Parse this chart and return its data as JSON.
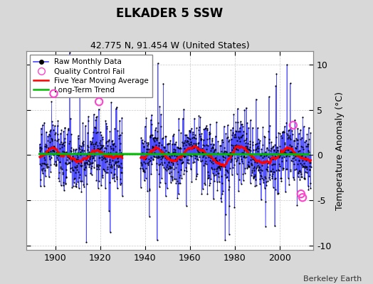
{
  "title": "ELKADER 5 SSW",
  "subtitle": "42.775 N, 91.454 W (United States)",
  "ylabel": "Temperature Anomaly (°C)",
  "attribution": "Berkeley Earth",
  "xlim": [
    1887,
    2015
  ],
  "ylim": [
    -10.5,
    11.5
  ],
  "yticks": [
    -10,
    -5,
    0,
    5,
    10
  ],
  "xticks": [
    1900,
    1920,
    1940,
    1960,
    1980,
    2000
  ],
  "bg_color": "#d8d8d8",
  "plot_bg_color": "#ffffff",
  "raw_line_color": "#4444ff",
  "raw_dot_color": "#000000",
  "ma_color": "#ff0000",
  "trend_color": "#00bb00",
  "qc_color": "#ff44cc",
  "period1": [
    1893,
    1929
  ],
  "period2": [
    1938,
    2013
  ],
  "qc_points": [
    [
      1899.3,
      6.8
    ],
    [
      1919.5,
      5.9
    ],
    [
      2006.0,
      3.3
    ],
    [
      2009.5,
      -4.3
    ],
    [
      2010.2,
      -4.7
    ]
  ],
  "seed": 77,
  "noise_std": 1.8,
  "spike_prob": 0.015,
  "spike_mag": [
    5,
    9
  ],
  "low_freq_amp": 0.7,
  "low_freq_period": 20
}
